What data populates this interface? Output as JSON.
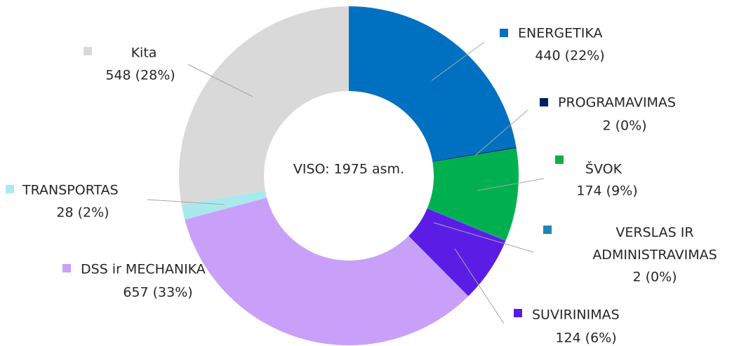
{
  "chart_data": {
    "type": "donut",
    "annotation": "VISO: 1975 asm.",
    "categories": [
      "ENERGETIKA",
      "PROGRAMAVIMAS",
      "ŠVOK",
      "VERSLAS IR ADMINISTRAVIMAS",
      "SUVIRINIMAS",
      "DSS ir MECHANIKA",
      "TRANSPORTAS",
      "Kita"
    ],
    "values": [
      440,
      2,
      174,
      2,
      124,
      657,
      28,
      548
    ],
    "value_labels": [
      "440 (22%)",
      "2 (0%)",
      "174 (9%)",
      "2 (0%)",
      "124 (6%)",
      "657 (33%)",
      "28 (2%)",
      "548 (28%)"
    ],
    "colors": [
      "#0070c0",
      "#002060",
      "#00b050",
      "#1f86b4",
      "#5b1de6",
      "#c9a0f9",
      "#a9e9ee",
      "#d9d9d9"
    ]
  }
}
